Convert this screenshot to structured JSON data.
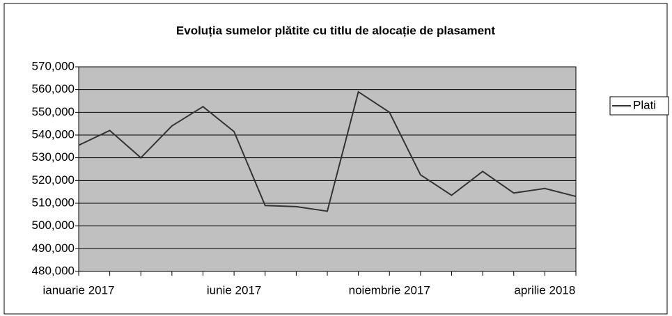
{
  "chart_data": {
    "type": "line",
    "title": "Evoluția sumelor plătite cu titlu de alocație de plasament",
    "categories": [
      "ianuarie 2017",
      null,
      null,
      null,
      null,
      "iunie 2017",
      null,
      null,
      null,
      null,
      "noiembrie 2017",
      null,
      null,
      null,
      null,
      "aprilie 2018",
      null
    ],
    "series": [
      {
        "name": "Plati",
        "color": "#333333",
        "values": [
          535500,
          542000,
          530000,
          544000,
          552500,
          541500,
          509000,
          508500,
          506500,
          559000,
          550000,
          522500,
          513500,
          524000,
          514500,
          516500,
          513000
        ]
      }
    ],
    "ylim": [
      480000,
      570000
    ],
    "yticks": [
      {
        "value": 480000,
        "label": "480,000"
      },
      {
        "value": 490000,
        "label": "490,000"
      },
      {
        "value": 500000,
        "label": "500,000"
      },
      {
        "value": 510000,
        "label": "510,000"
      },
      {
        "value": 520000,
        "label": "520,000"
      },
      {
        "value": 530000,
        "label": "530,000"
      },
      {
        "value": 540000,
        "label": "540,000"
      },
      {
        "value": 550000,
        "label": "550,000"
      },
      {
        "value": 560000,
        "label": "560,000"
      },
      {
        "value": 570000,
        "label": "570,000"
      }
    ],
    "grid": true,
    "legend": "right"
  }
}
